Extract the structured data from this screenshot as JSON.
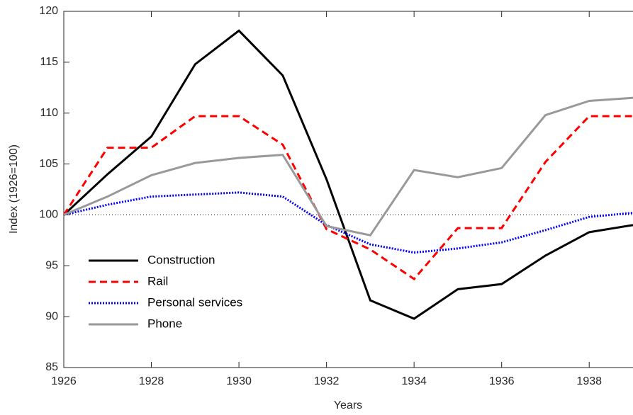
{
  "chart_data": {
    "type": "line",
    "xlabel": "Years",
    "ylabel": "Index (1926=100)",
    "x": [
      1926,
      1927,
      1928,
      1929,
      1930,
      1931,
      1932,
      1933,
      1934,
      1935,
      1936,
      1937,
      1938,
      1939
    ],
    "series": [
      {
        "name": "Construction",
        "color": "#000000",
        "style": "solid",
        "values": [
          100,
          104,
          107.7,
          114.8,
          118.1,
          113.7,
          103.5,
          91.6,
          89.8,
          92.7,
          93.2,
          96,
          98.3,
          99
        ]
      },
      {
        "name": "Rail",
        "color": "#ff0000",
        "style": "dashed",
        "values": [
          100,
          106.6,
          106.6,
          109.7,
          109.7,
          106.9,
          98.6,
          96.6,
          93.7,
          98.7,
          98.7,
          105.2,
          109.7,
          109.7
        ]
      },
      {
        "name": "Personal services",
        "color": "#0000ff",
        "style": "dotted",
        "values": [
          100,
          101,
          101.8,
          102,
          102.2,
          101.8,
          99,
          97.1,
          96.3,
          96.7,
          97.3,
          98.5,
          99.8,
          100.2
        ]
      },
      {
        "name": "Phone",
        "color": "#999999",
        "style": "solid",
        "values": [
          100,
          101.8,
          103.9,
          105.1,
          105.6,
          105.9,
          98.9,
          98,
          104.4,
          103.7,
          104.6,
          109.8,
          111.2,
          111.5
        ]
      }
    ],
    "xlim": [
      1926,
      1939
    ],
    "xticks": [
      1926,
      1928,
      1930,
      1932,
      1934,
      1936,
      1938
    ],
    "ylim": [
      85,
      120
    ],
    "yticks": [
      85,
      90,
      95,
      100,
      105,
      110,
      115,
      120
    ],
    "reference_line": 100,
    "legend": "lower-left",
    "grid": false
  }
}
